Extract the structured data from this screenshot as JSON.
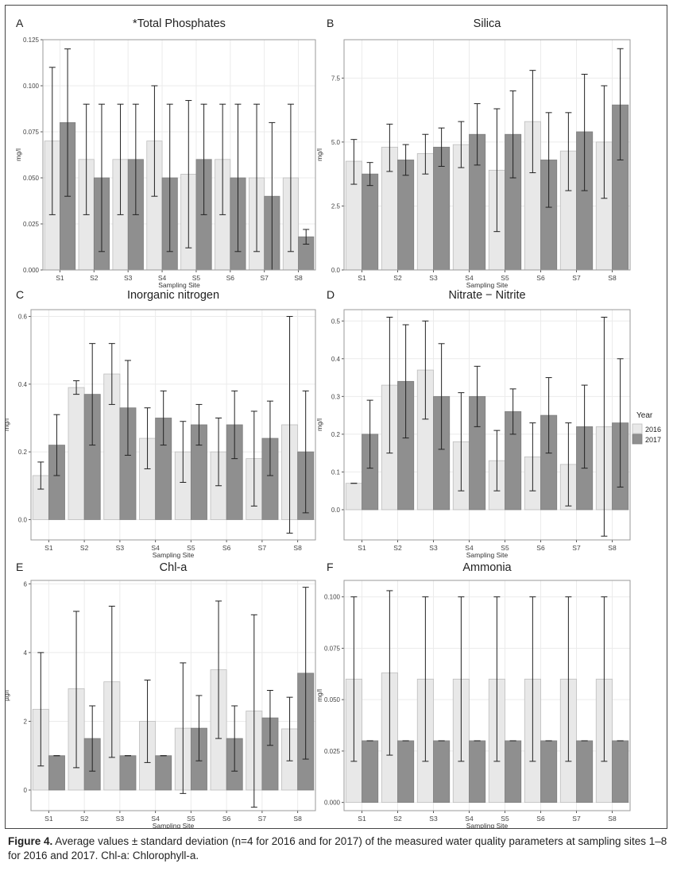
{
  "panels": [
    {
      "letter": "A",
      "chart_data": {
        "type": "bar",
        "title": "*Total Phosphates",
        "xlabel": "Sampling Site",
        "ylabel": "mg/l",
        "categories": [
          "S1",
          "S2",
          "S3",
          "S4",
          "S5",
          "S6",
          "S7",
          "S8"
        ],
        "ylim": [
          0,
          0.125
        ],
        "yticks": [
          "0.000",
          "0.025",
          "0.050",
          "0.075",
          "0.100",
          "0.125"
        ],
        "series": [
          {
            "name": "2016",
            "values": [
              0.07,
              0.06,
              0.06,
              0.07,
              0.052,
              0.06,
              0.05,
              0.05
            ],
            "err_low": [
              0.03,
              0.03,
              0.03,
              0.04,
              0.012,
              0.03,
              0.01,
              0.01
            ],
            "err_high": [
              0.11,
              0.09,
              0.09,
              0.1,
              0.092,
              0.09,
              0.09,
              0.09
            ]
          },
          {
            "name": "2017",
            "values": [
              0.08,
              0.05,
              0.06,
              0.05,
              0.06,
              0.05,
              0.04,
              0.018
            ],
            "err_low": [
              0.04,
              0.01,
              0.03,
              0.01,
              0.03,
              0.01,
              0.0,
              0.014
            ],
            "err_high": [
              0.12,
              0.09,
              0.09,
              0.09,
              0.09,
              0.09,
              0.08,
              0.022
            ]
          }
        ]
      }
    },
    {
      "letter": "B",
      "chart_data": {
        "type": "bar",
        "title": "Silica",
        "xlabel": "Sampling Site",
        "ylabel": "mg/l",
        "categories": [
          "S1",
          "S2",
          "S3",
          "S4",
          "S5",
          "S6",
          "S7",
          "S8"
        ],
        "ylim": [
          0,
          9
        ],
        "yticks": [
          "0.0",
          "2.5",
          "5.0",
          "7.5"
        ],
        "series": [
          {
            "name": "2016",
            "values": [
              4.25,
              4.8,
              4.55,
              4.9,
              3.9,
              5.8,
              4.65,
              5.0
            ],
            "err_low": [
              3.35,
              3.85,
              3.75,
              4.0,
              1.5,
              3.8,
              3.1,
              2.8
            ],
            "err_high": [
              5.1,
              5.7,
              5.3,
              5.8,
              6.3,
              7.8,
              6.15,
              7.2
            ]
          },
          {
            "name": "2017",
            "values": [
              3.75,
              4.3,
              4.8,
              5.3,
              5.3,
              4.3,
              5.4,
              6.45
            ],
            "err_low": [
              3.3,
              3.7,
              4.05,
              4.1,
              3.6,
              2.45,
              3.1,
              4.3
            ],
            "err_high": [
              4.2,
              4.9,
              5.55,
              6.5,
              7.0,
              6.15,
              7.65,
              8.65
            ]
          }
        ]
      }
    },
    {
      "letter": "C",
      "chart_data": {
        "type": "bar",
        "title": "Inorganic nitrogen",
        "xlabel": "Sampling Site",
        "ylabel": "mg/l",
        "categories": [
          "S1",
          "S2",
          "S3",
          "S4",
          "S5",
          "S6",
          "S7",
          "S8"
        ],
        "ylim": [
          -0.06,
          0.62
        ],
        "yticks": [
          "0.0",
          "0.2",
          "0.4",
          "0.6"
        ],
        "series": [
          {
            "name": "2016",
            "values": [
              0.13,
              0.39,
              0.43,
              0.24,
              0.2,
              0.2,
              0.18,
              0.28
            ],
            "err_low": [
              0.09,
              0.37,
              0.34,
              0.15,
              0.11,
              0.1,
              0.04,
              -0.04
            ],
            "err_high": [
              0.17,
              0.41,
              0.52,
              0.33,
              0.29,
              0.3,
              0.32,
              0.6
            ]
          },
          {
            "name": "2017",
            "values": [
              0.22,
              0.37,
              0.33,
              0.3,
              0.28,
              0.28,
              0.24,
              0.2
            ],
            "err_low": [
              0.13,
              0.22,
              0.19,
              0.22,
              0.22,
              0.18,
              0.13,
              0.02
            ],
            "err_high": [
              0.31,
              0.52,
              0.47,
              0.38,
              0.34,
              0.38,
              0.35,
              0.38
            ]
          }
        ]
      }
    },
    {
      "letter": "D",
      "chart_data": {
        "type": "bar",
        "title": "Nitrate − Nitrite",
        "xlabel": "Sampling Site",
        "ylabel": "mg/l",
        "categories": [
          "S1",
          "S2",
          "S3",
          "S4",
          "S5",
          "S6",
          "S7",
          "S8"
        ],
        "ylim": [
          -0.08,
          0.53
        ],
        "yticks": [
          "0.0",
          "0.1",
          "0.2",
          "0.3",
          "0.4",
          "0.5"
        ],
        "series": [
          {
            "name": "2016",
            "values": [
              0.07,
              0.33,
              0.37,
              0.18,
              0.13,
              0.14,
              0.12,
              0.22
            ],
            "err_low": [
              0.07,
              0.15,
              0.24,
              0.05,
              0.05,
              0.05,
              0.01,
              -0.07
            ],
            "err_high": [
              0.07,
              0.51,
              0.5,
              0.31,
              0.21,
              0.23,
              0.23,
              0.51
            ]
          },
          {
            "name": "2017",
            "values": [
              0.2,
              0.34,
              0.3,
              0.3,
              0.26,
              0.25,
              0.22,
              0.23
            ],
            "err_low": [
              0.11,
              0.19,
              0.16,
              0.22,
              0.2,
              0.15,
              0.11,
              0.06
            ],
            "err_high": [
              0.29,
              0.49,
              0.44,
              0.38,
              0.32,
              0.35,
              0.33,
              0.4
            ]
          }
        ]
      }
    },
    {
      "letter": "E",
      "chart_data": {
        "type": "bar",
        "title": "Chl-a",
        "xlabel": "Sampling Site",
        "ylabel": "µg/l",
        "categories": [
          "S1",
          "S2",
          "S3",
          "S4",
          "S5",
          "S6",
          "S7",
          "S8"
        ],
        "ylim": [
          -0.6,
          6.1
        ],
        "yticks": [
          "0",
          "2",
          "4",
          "6"
        ],
        "series": [
          {
            "name": "2016",
            "values": [
              2.35,
              2.95,
              3.15,
              2.0,
              1.8,
              3.5,
              2.3,
              1.78
            ],
            "err_low": [
              0.7,
              0.65,
              0.95,
              0.8,
              -0.1,
              1.5,
              -0.5,
              0.85
            ],
            "err_high": [
              4.0,
              5.2,
              5.35,
              3.2,
              3.7,
              5.5,
              5.1,
              2.7
            ]
          },
          {
            "name": "2017",
            "values": [
              1.0,
              1.5,
              1.0,
              1.0,
              1.8,
              1.5,
              2.1,
              3.4
            ],
            "err_low": [
              1.0,
              0.55,
              1.0,
              1.0,
              0.85,
              0.55,
              1.3,
              0.9
            ],
            "err_high": [
              1.0,
              2.45,
              1.0,
              1.0,
              2.75,
              2.45,
              2.9,
              5.9
            ]
          }
        ]
      }
    },
    {
      "letter": "F",
      "chart_data": {
        "type": "bar",
        "title": "Ammonia",
        "xlabel": "Sampling Site",
        "ylabel": "mg/l",
        "categories": [
          "S1",
          "S2",
          "S3",
          "S4",
          "S5",
          "S6",
          "S7",
          "S8"
        ],
        "ylim": [
          -0.004,
          0.108
        ],
        "yticks": [
          "0.000",
          "0.025",
          "0.050",
          "0.075",
          "0.100"
        ],
        "series": [
          {
            "name": "2016",
            "values": [
              0.06,
              0.063,
              0.06,
              0.06,
              0.06,
              0.06,
              0.06,
              0.06
            ],
            "err_low": [
              0.02,
              0.023,
              0.02,
              0.02,
              0.02,
              0.02,
              0.02,
              0.02
            ],
            "err_high": [
              0.1,
              0.103,
              0.1,
              0.1,
              0.1,
              0.1,
              0.1,
              0.1
            ]
          },
          {
            "name": "2017",
            "values": [
              0.03,
              0.03,
              0.03,
              0.03,
              0.03,
              0.03,
              0.03,
              0.03
            ],
            "err_low": [
              0.03,
              0.03,
              0.03,
              0.03,
              0.03,
              0.03,
              0.03,
              0.03
            ],
            "err_high": [
              0.03,
              0.03,
              0.03,
              0.03,
              0.03,
              0.03,
              0.03,
              0.03
            ]
          }
        ]
      }
    }
  ],
  "legend": {
    "title": "Year",
    "items": [
      "2016",
      "2017"
    ],
    "placement": "right"
  },
  "colors": {
    "y2016": "#e8e8e8",
    "y2017": "#8f8f8f",
    "bar_stroke": "#6e6e6e",
    "panel_border": "#9a9a9a",
    "grid": "#ebebeb"
  },
  "caption": {
    "label": "Figure 4.",
    "text": "Average values ± standard deviation (n=4 for 2016 and for 2017) of the measured water quality parameters at sampling sites 1–8 for 2016 and 2017. Chl-a: Chlorophyll-a."
  }
}
